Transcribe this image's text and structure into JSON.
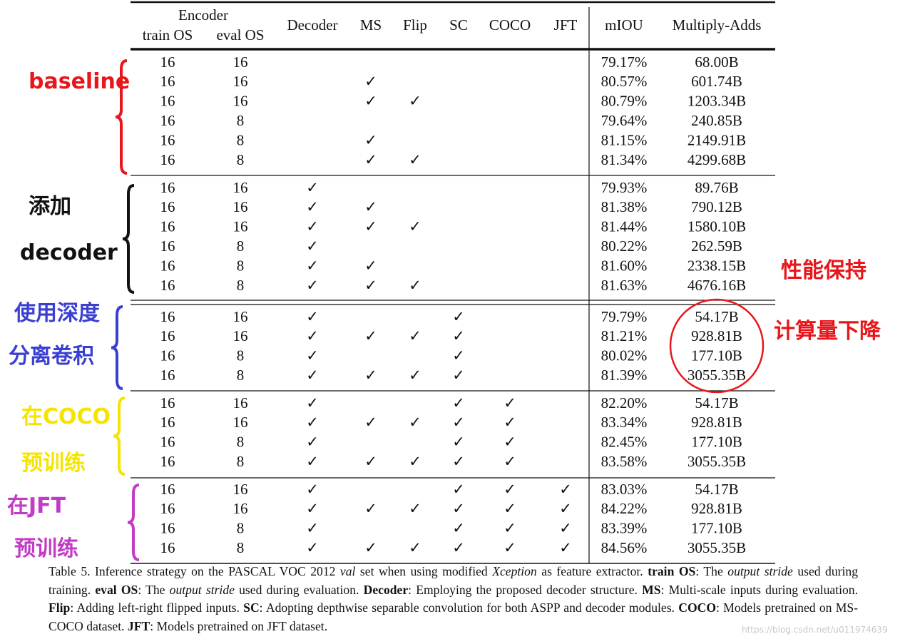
{
  "table": {
    "header": {
      "encoder": "Encoder",
      "train_os": "train OS",
      "eval_os": "eval OS",
      "columns": [
        "Decoder",
        "MS",
        "Flip",
        "SC",
        "COCO",
        "JFT"
      ],
      "miou": "mIOU",
      "madds": "Multiply-Adds"
    },
    "check": "✓",
    "groups": [
      [
        {
          "train_os": "16",
          "eval_os": "16",
          "flags": [
            false,
            false,
            false,
            false,
            false,
            false
          ],
          "miou": "79.17%",
          "madds": "68.00B"
        },
        {
          "train_os": "16",
          "eval_os": "16",
          "flags": [
            false,
            true,
            false,
            false,
            false,
            false
          ],
          "miou": "80.57%",
          "madds": "601.74B"
        },
        {
          "train_os": "16",
          "eval_os": "16",
          "flags": [
            false,
            true,
            true,
            false,
            false,
            false
          ],
          "miou": "80.79%",
          "madds": "1203.34B"
        },
        {
          "train_os": "16",
          "eval_os": "8",
          "flags": [
            false,
            false,
            false,
            false,
            false,
            false
          ],
          "miou": "79.64%",
          "madds": "240.85B"
        },
        {
          "train_os": "16",
          "eval_os": "8",
          "flags": [
            false,
            true,
            false,
            false,
            false,
            false
          ],
          "miou": "81.15%",
          "madds": "2149.91B"
        },
        {
          "train_os": "16",
          "eval_os": "8",
          "flags": [
            false,
            true,
            true,
            false,
            false,
            false
          ],
          "miou": "81.34%",
          "madds": "4299.68B"
        }
      ],
      [
        {
          "train_os": "16",
          "eval_os": "16",
          "flags": [
            true,
            false,
            false,
            false,
            false,
            false
          ],
          "miou": "79.93%",
          "madds": "89.76B"
        },
        {
          "train_os": "16",
          "eval_os": "16",
          "flags": [
            true,
            true,
            false,
            false,
            false,
            false
          ],
          "miou": "81.38%",
          "madds": "790.12B"
        },
        {
          "train_os": "16",
          "eval_os": "16",
          "flags": [
            true,
            true,
            true,
            false,
            false,
            false
          ],
          "miou": "81.44%",
          "madds": "1580.10B"
        },
        {
          "train_os": "16",
          "eval_os": "8",
          "flags": [
            true,
            false,
            false,
            false,
            false,
            false
          ],
          "miou": "80.22%",
          "madds": "262.59B"
        },
        {
          "train_os": "16",
          "eval_os": "8",
          "flags": [
            true,
            true,
            false,
            false,
            false,
            false
          ],
          "miou": "81.60%",
          "madds": "2338.15B"
        },
        {
          "train_os": "16",
          "eval_os": "8",
          "flags": [
            true,
            true,
            true,
            false,
            false,
            false
          ],
          "miou": "81.63%",
          "madds": "4676.16B"
        }
      ],
      [
        {
          "train_os": "16",
          "eval_os": "16",
          "flags": [
            true,
            false,
            false,
            true,
            false,
            false
          ],
          "miou": "79.79%",
          "madds": "54.17B"
        },
        {
          "train_os": "16",
          "eval_os": "16",
          "flags": [
            true,
            true,
            true,
            true,
            false,
            false
          ],
          "miou": "81.21%",
          "madds": "928.81B"
        },
        {
          "train_os": "16",
          "eval_os": "8",
          "flags": [
            true,
            false,
            false,
            true,
            false,
            false
          ],
          "miou": "80.02%",
          "madds": "177.10B"
        },
        {
          "train_os": "16",
          "eval_os": "8",
          "flags": [
            true,
            true,
            true,
            true,
            false,
            false
          ],
          "miou": "81.39%",
          "madds": "3055.35B"
        }
      ],
      [
        {
          "train_os": "16",
          "eval_os": "16",
          "flags": [
            true,
            false,
            false,
            true,
            true,
            false
          ],
          "miou": "82.20%",
          "madds": "54.17B"
        },
        {
          "train_os": "16",
          "eval_os": "16",
          "flags": [
            true,
            true,
            true,
            true,
            true,
            false
          ],
          "miou": "83.34%",
          "madds": "928.81B"
        },
        {
          "train_os": "16",
          "eval_os": "8",
          "flags": [
            true,
            false,
            false,
            true,
            true,
            false
          ],
          "miou": "82.45%",
          "madds": "177.10B"
        },
        {
          "train_os": "16",
          "eval_os": "8",
          "flags": [
            true,
            true,
            true,
            true,
            true,
            false
          ],
          "miou": "83.58%",
          "madds": "3055.35B"
        }
      ],
      [
        {
          "train_os": "16",
          "eval_os": "16",
          "flags": [
            true,
            false,
            false,
            true,
            true,
            true
          ],
          "miou": "83.03%",
          "madds": "54.17B"
        },
        {
          "train_os": "16",
          "eval_os": "16",
          "flags": [
            true,
            true,
            true,
            true,
            true,
            true
          ],
          "miou": "84.22%",
          "madds": "928.81B"
        },
        {
          "train_os": "16",
          "eval_os": "8",
          "flags": [
            true,
            false,
            false,
            true,
            true,
            true
          ],
          "miou": "83.39%",
          "madds": "177.10B"
        },
        {
          "train_os": "16",
          "eval_os": "8",
          "flags": [
            true,
            true,
            true,
            true,
            true,
            true
          ],
          "miou": "84.56%",
          "madds": "3055.35B"
        }
      ]
    ]
  },
  "caption": [
    {
      "text": "Table 5. Inference strategy on the PASCAL VOC 2012 ",
      "style": "n"
    },
    {
      "text": "val",
      "style": "i"
    },
    {
      "text": " set when using modified ",
      "style": "n"
    },
    {
      "text": "Xception",
      "style": "i"
    },
    {
      "text": " as feature extractor. ",
      "style": "n"
    },
    {
      "text": "train OS",
      "style": "b"
    },
    {
      "text": ": The ",
      "style": "n"
    },
    {
      "text": "output stride",
      "style": "i"
    },
    {
      "text": " used during training. ",
      "style": "n"
    },
    {
      "text": "eval OS",
      "style": "b"
    },
    {
      "text": ": The ",
      "style": "n"
    },
    {
      "text": "output stride",
      "style": "i"
    },
    {
      "text": " used during evaluation. ",
      "style": "n"
    },
    {
      "text": "Decoder",
      "style": "b"
    },
    {
      "text": ": Employing the proposed decoder structure. ",
      "style": "n"
    },
    {
      "text": "MS",
      "style": "b"
    },
    {
      "text": ": Multi-scale inputs during evaluation. ",
      "style": "n"
    },
    {
      "text": "Flip",
      "style": "b"
    },
    {
      "text": ": Adding left-right flipped inputs. ",
      "style": "n"
    },
    {
      "text": "SC",
      "style": "b"
    },
    {
      "text": ": Adopting depthwise separable convolution for both ASPP and decoder modules. ",
      "style": "n"
    },
    {
      "text": "COCO",
      "style": "b"
    },
    {
      "text": ": Models pretrained on MS-COCO dataset. ",
      "style": "n"
    },
    {
      "text": "JFT",
      "style": "b"
    },
    {
      "text": ": Models pretrained on JFT dataset.",
      "style": "n"
    }
  ],
  "annotations": [
    {
      "text": "baseline",
      "color": "#e8161b"
    },
    {
      "text": "添加 decoder",
      "color": "#111111"
    },
    {
      "text": "使用深度 分离卷积",
      "color": "#3b3fd0"
    },
    {
      "text": "在COCO 预训练",
      "color": "#f5e400"
    },
    {
      "text": "在JFT 预训练",
      "color": "#c23bc6"
    },
    {
      "text": "性能保持 计算量下降",
      "color": "#e8161b"
    }
  ],
  "watermark": "https://blog.csdn.net/u011974639"
}
